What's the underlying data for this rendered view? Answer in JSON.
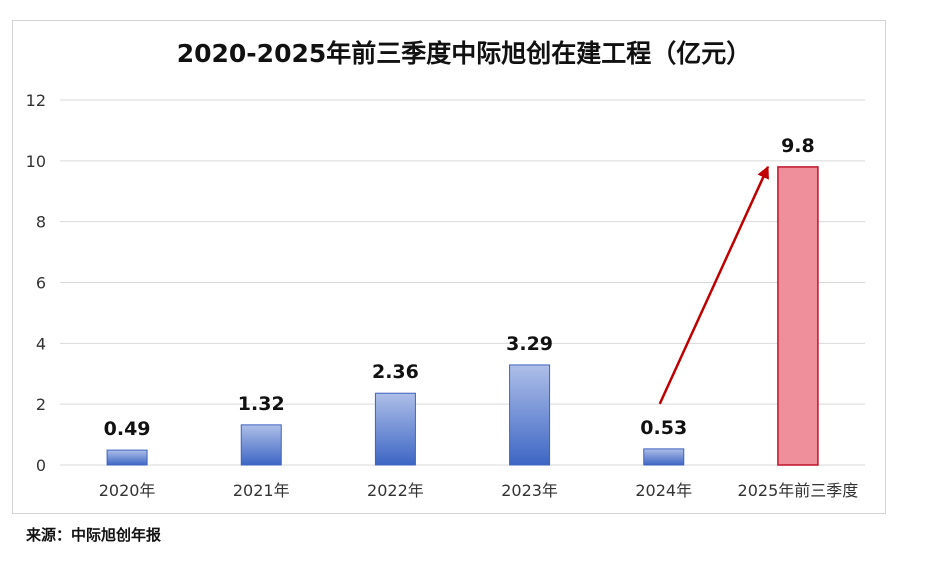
{
  "chart_data": {
    "type": "bar",
    "title": "2020-2025年前三季度中际旭创在建工程（亿元）",
    "categories": [
      "2020年",
      "2021年",
      "2022年",
      "2023年",
      "2024年",
      "2025年前三季度"
    ],
    "values": [
      0.49,
      1.32,
      2.36,
      3.29,
      0.53,
      9.8
    ],
    "data_labels": [
      "0.49",
      "1.32",
      "2.36",
      "3.29",
      "0.53",
      "9.8"
    ],
    "yticks": [
      "0",
      "2",
      "4",
      "6",
      "8",
      "10",
      "12"
    ],
    "ylim": [
      0,
      12
    ],
    "grid": true,
    "highlight_index": 5,
    "colors": {
      "bar_top": "#aebfe8",
      "bar_bottom": "#3d66c4",
      "bar_stroke": "#3f63bf",
      "highlight_fill": "#ef8f9b",
      "highlight_stroke": "#c0132b",
      "arrow": "#c00000",
      "grid": "#d9d9d9"
    }
  },
  "source": "来源：中际旭创年报"
}
